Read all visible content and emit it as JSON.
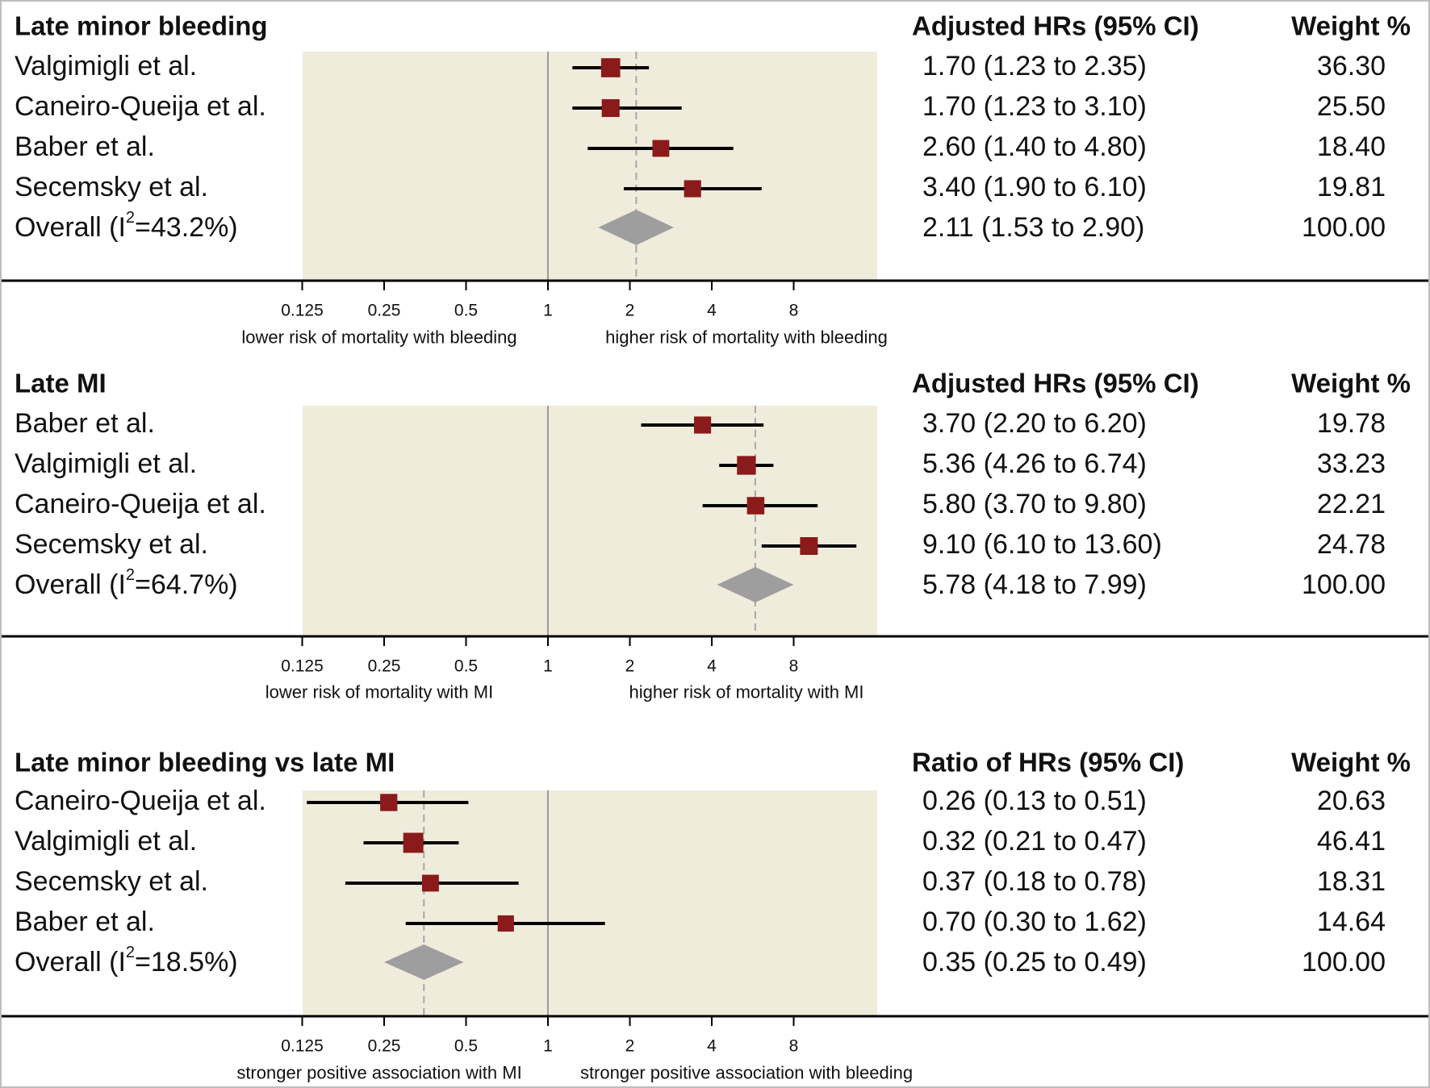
{
  "colors": {
    "panel_bg": "#f0ecdc",
    "marker": "#8b1a1a",
    "ci_line": "#000000",
    "diamond": "#9e9e9e",
    "reference_line": "#9a9a9a",
    "pooled_dashed_line": "#a8a8a8",
    "axis": "#000000",
    "frame": "#bdbdbd"
  },
  "chart_data": [
    {
      "type": "forest",
      "title": "Late minor bleeding",
      "estimate_header": "Adjusted HRs (95% CI)",
      "weight_header": "Weight %",
      "xscale": "log2",
      "xlim": [
        0.125,
        16
      ],
      "ticks": [
        0.125,
        0.25,
        0.5,
        1,
        2,
        4,
        8
      ],
      "tick_labels": [
        "0.125",
        "0.25",
        "0.5",
        "1",
        "2",
        "4",
        "8"
      ],
      "reference_value": 1,
      "left_annotation": "lower risk of mortality with bleeding",
      "right_annotation": "higher risk of mortality with bleeding",
      "studies": [
        {
          "label": "Valgimigli et al.",
          "estimate": 1.7,
          "lower": 1.23,
          "upper": 2.35,
          "text": "1.70 (1.23 to 2.35)",
          "weight": 36.3,
          "weight_text": "36.30"
        },
        {
          "label": "Caneiro-Queija et al.",
          "estimate": 1.7,
          "lower": 1.23,
          "upper": 3.1,
          "text": "1.70 (1.23 to 3.10)",
          "weight": 25.5,
          "weight_text": "25.50"
        },
        {
          "label": "Baber et al.",
          "estimate": 2.6,
          "lower": 1.4,
          "upper": 4.8,
          "text": "2.60 (1.40 to 4.80)",
          "weight": 18.4,
          "weight_text": "18.40"
        },
        {
          "label": "Secemsky et al.",
          "estimate": 3.4,
          "lower": 1.9,
          "upper": 6.1,
          "text": "3.40 (1.90 to 6.10)",
          "weight": 19.81,
          "weight_text": "19.81"
        }
      ],
      "overall": {
        "label_prefix": "Overall (I",
        "label_sup": "2",
        "label_suffix": "=43.2%)",
        "estimate": 2.11,
        "lower": 1.53,
        "upper": 2.9,
        "text": "2.11 (1.53 to 2.90)",
        "weight_text": "100.00"
      }
    },
    {
      "type": "forest",
      "title": "Late MI",
      "estimate_header": "Adjusted HRs (95% CI)",
      "weight_header": "Weight %",
      "xscale": "log2",
      "xlim": [
        0.125,
        16
      ],
      "ticks": [
        0.125,
        0.25,
        0.5,
        1,
        2,
        4,
        8
      ],
      "tick_labels": [
        "0.125",
        "0.25",
        "0.5",
        "1",
        "2",
        "4",
        "8"
      ],
      "reference_value": 1,
      "left_annotation": "lower risk of mortality with MI",
      "right_annotation": "higher risk of mortality with MI",
      "studies": [
        {
          "label": "Baber et al.",
          "estimate": 3.7,
          "lower": 2.2,
          "upper": 6.2,
          "text": "3.70 (2.20 to 6.20)",
          "weight": 19.78,
          "weight_text": "19.78"
        },
        {
          "label": "Valgimigli et al.",
          "estimate": 5.36,
          "lower": 4.26,
          "upper": 6.74,
          "text": "5.36 (4.26 to 6.74)",
          "weight": 33.23,
          "weight_text": "33.23"
        },
        {
          "label": "Caneiro-Queija et al.",
          "estimate": 5.8,
          "lower": 3.7,
          "upper": 9.8,
          "text": "5.80 (3.70 to 9.80)",
          "weight": 22.21,
          "weight_text": "22.21"
        },
        {
          "label": "Secemsky et al.",
          "estimate": 9.1,
          "lower": 6.1,
          "upper": 13.6,
          "text": "9.10 (6.10 to 13.60)",
          "weight": 24.78,
          "weight_text": "24.78"
        }
      ],
      "overall": {
        "label_prefix": "Overall (I",
        "label_sup": "2",
        "label_suffix": "=64.7%)",
        "estimate": 5.78,
        "lower": 4.18,
        "upper": 7.99,
        "text": "5.78 (4.18 to 7.99)",
        "weight_text": "100.00"
      }
    },
    {
      "type": "forest",
      "title": "Late minor bleeding vs late MI",
      "estimate_header": "Ratio of HRs (95% CI)",
      "weight_header": "Weight %",
      "xscale": "log2",
      "xlim": [
        0.125,
        16
      ],
      "ticks": [
        0.125,
        0.25,
        0.5,
        1,
        2,
        4,
        8
      ],
      "tick_labels": [
        "0.125",
        "0.25",
        "0.5",
        "1",
        "2",
        "4",
        "8"
      ],
      "reference_value": 1,
      "left_annotation": "stronger positive association with MI",
      "right_annotation": "stronger positive association with bleeding",
      "studies": [
        {
          "label": "Caneiro-Queija et al.",
          "estimate": 0.26,
          "lower": 0.13,
          "upper": 0.51,
          "text": "0.26 (0.13 to 0.51)",
          "weight": 20.63,
          "weight_text": "20.63"
        },
        {
          "label": "Valgimigli et al.",
          "estimate": 0.32,
          "lower": 0.21,
          "upper": 0.47,
          "text": "0.32 (0.21 to 0.47)",
          "weight": 46.41,
          "weight_text": "46.41"
        },
        {
          "label": "Secemsky et al.",
          "estimate": 0.37,
          "lower": 0.18,
          "upper": 0.78,
          "text": "0.37 (0.18 to 0.78)",
          "weight": 18.31,
          "weight_text": "18.31"
        },
        {
          "label": "Baber et al.",
          "estimate": 0.7,
          "lower": 0.3,
          "upper": 1.62,
          "text": "0.70 (0.30 to 1.62)",
          "weight": 14.64,
          "weight_text": "14.64"
        }
      ],
      "overall": {
        "label_prefix": "Overall (I",
        "label_sup": "2",
        "label_suffix": "=18.5%)",
        "estimate": 0.35,
        "lower": 0.25,
        "upper": 0.49,
        "text": "0.35 (0.25 to 0.49)",
        "weight_text": "100.00"
      }
    }
  ]
}
